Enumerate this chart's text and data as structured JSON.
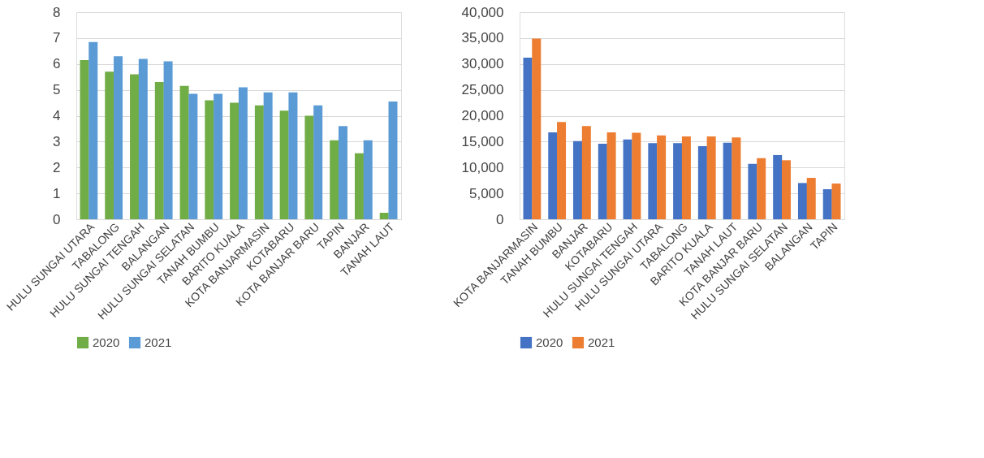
{
  "chart_data": [
    {
      "type": "bar",
      "categories": [
        "HULU SUNGAI UTARA",
        "TABALONG",
        "HULU SUNGAI TENGAH",
        "BALANGAN",
        "HULU SUNGAI SELATAN",
        "TANAH BUMBU",
        "BARITO KUALA",
        "KOTA BANJARMASIN",
        "KOTABARU",
        "KOTA BANJAR BARU",
        "TAPIN",
        "BANJAR",
        "TANAH LAUT"
      ],
      "series": [
        {
          "name": "2020",
          "color": "#70ad47",
          "values": [
            6.15,
            5.7,
            5.6,
            5.3,
            5.15,
            4.6,
            4.5,
            4.4,
            4.2,
            4.0,
            3.05,
            2.55,
            0.25
          ]
        },
        {
          "name": "2021",
          "color": "#5b9bd5",
          "values": [
            6.85,
            6.3,
            6.2,
            6.1,
            4.85,
            4.85,
            5.1,
            4.9,
            4.9,
            4.4,
            3.6,
            3.05,
            4.55
          ]
        }
      ],
      "ylim": [
        0,
        8
      ],
      "yticks": [
        0,
        1,
        2,
        3,
        4,
        5,
        6,
        7,
        8
      ],
      "grid": "y",
      "legend": "bottom"
    },
    {
      "type": "bar",
      "categories": [
        "KOTA BANJARMASIN",
        "TANAH BUMBU",
        "BANJAR",
        "KOTABARU",
        "HULU SUNGAI TENGAH",
        "HULU SUNGAI UTARA",
        "TABALONG",
        "BARITO KUALA",
        "TANAH LAUT",
        "KOTA BANJAR BARU",
        "HULU SUNGAI SELATAN",
        "BALANGAN",
        "TAPIN"
      ],
      "series": [
        {
          "name": "2020",
          "color": "#4472c4",
          "values": [
            31200,
            16800,
            15100,
            14600,
            15400,
            14700,
            14700,
            14100,
            14800,
            10700,
            12400,
            7000,
            5800
          ]
        },
        {
          "name": "2021",
          "color": "#ed7d31",
          "values": [
            34900,
            18800,
            18000,
            16800,
            16700,
            16200,
            16000,
            16000,
            15800,
            11800,
            11400,
            8000,
            6900
          ]
        }
      ],
      "ylim": [
        0,
        40000
      ],
      "yticks": [
        {
          "value": 0,
          "label": "0"
        },
        {
          "value": 5000,
          "label": "5,000"
        },
        {
          "value": 10000,
          "label": "10,000"
        },
        {
          "value": 15000,
          "label": "15,000"
        },
        {
          "value": 20000,
          "label": "20,000"
        },
        {
          "value": 25000,
          "label": "25,000"
        },
        {
          "value": 30000,
          "label": "30,000"
        },
        {
          "value": 35000,
          "label": "35,000"
        },
        {
          "value": 40000,
          "label": "40,000"
        }
      ],
      "grid": "y",
      "legend": "bottom"
    }
  ]
}
